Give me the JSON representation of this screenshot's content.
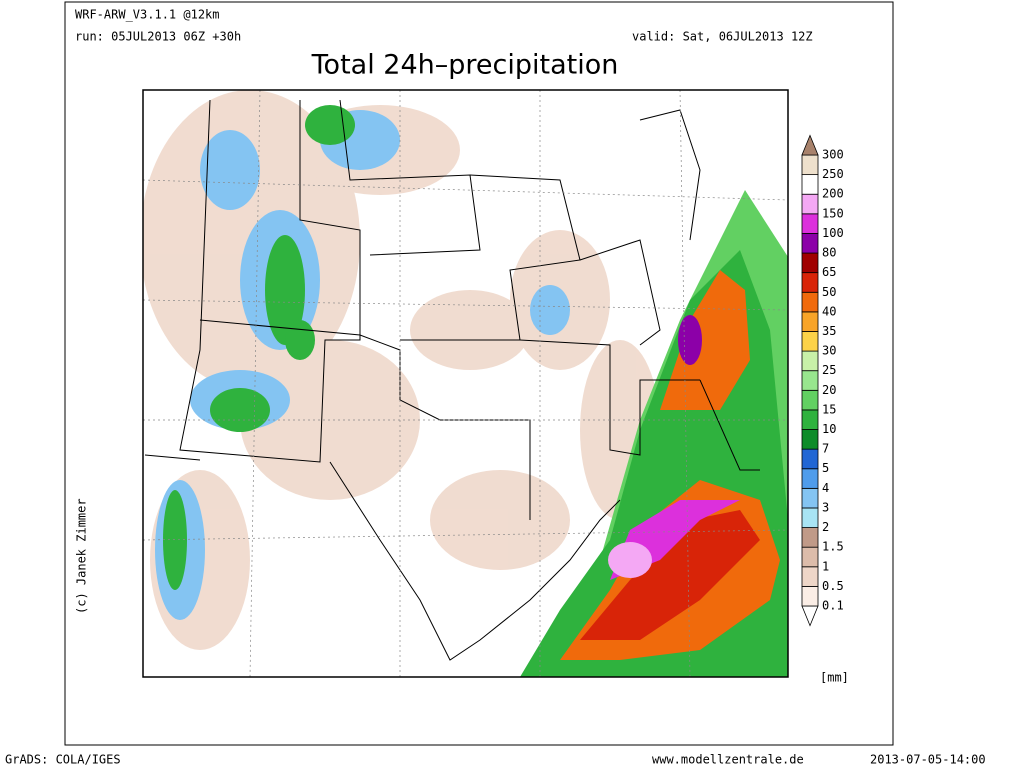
{
  "header": {
    "model": "WRF-ARW_V3.1.1 @12km",
    "run": "run: 05JUL2013 06Z +30h",
    "valid": "valid: Sat, 06JUL2013 12Z",
    "title": "Total 24h–precipitation"
  },
  "credit": "(c) Janek Zimmer",
  "legend": {
    "unit": "[mm]",
    "labels": [
      "0.1",
      "0.5",
      "1",
      "1.5",
      "2",
      "3",
      "4",
      "5",
      "7",
      "10",
      "15",
      "20",
      "25",
      "30",
      "35",
      "40",
      "50",
      "65",
      "80",
      "100",
      "150",
      "200",
      "250",
      "300"
    ],
    "colors": [
      "#ffffff",
      "#fbeee6",
      "#eed6c8",
      "#dcbcaa",
      "#c09a88",
      "#a8e4f4",
      "#84c4f2",
      "#4f9ceb",
      "#2166d4",
      "#0e8c2a",
      "#2fb23e",
      "#62d062",
      "#98e68e",
      "#c8f0a8",
      "#fcd248",
      "#f8a428",
      "#f06a0c",
      "#d82408",
      "#a00000",
      "#8c00a8",
      "#dc30dc",
      "#f4a8f4",
      "#ffffff",
      "#eee0cc",
      "#a8826c"
    ]
  },
  "footer": {
    "left": "GrADS: COLA/IGES",
    "center": "www.modellzentrale.de",
    "right": "2013-07-05-14:00"
  }
}
